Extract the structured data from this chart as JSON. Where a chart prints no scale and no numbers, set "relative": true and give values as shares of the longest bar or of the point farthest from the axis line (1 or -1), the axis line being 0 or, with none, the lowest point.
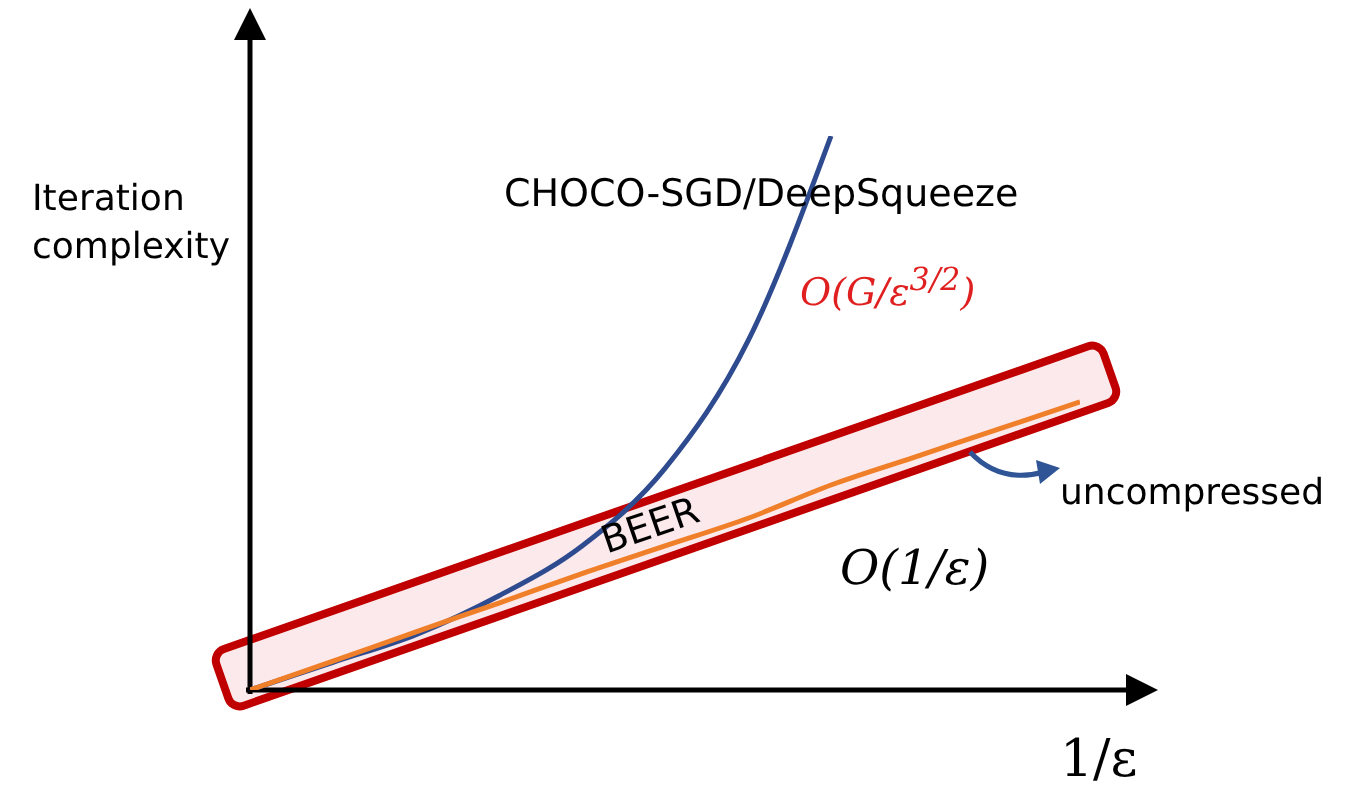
{
  "chart_data": {
    "type": "line",
    "relative": true,
    "xlabel": "1/ε",
    "ylabel": "Iteration complexity",
    "categories": [
      null,
      null,
      null,
      null,
      null,
      null,
      null,
      null,
      null,
      null,
      null
    ],
    "series": [
      {
        "name": "CHOCO-SGD/DeepSqueeze",
        "color": "#2f4b8f",
        "values": [
          0,
          0.05,
          0.1,
          0.17,
          0.26,
          0.4,
          0.63,
          1,
          null,
          null,
          null
        ]
      },
      {
        "name": "BEER",
        "color": "#f07f2a",
        "values": [
          0,
          0.052,
          0.105,
          0.157,
          0.21,
          0.26,
          0.31,
          0.37,
          0.42,
          0.47,
          0.52
        ]
      }
    ],
    "annotations": [
      "O(G/ε$^{3/2}$)",
      "O(1/ε)",
      "uncompressed"
    ],
    "marker": "none"
  }
}
